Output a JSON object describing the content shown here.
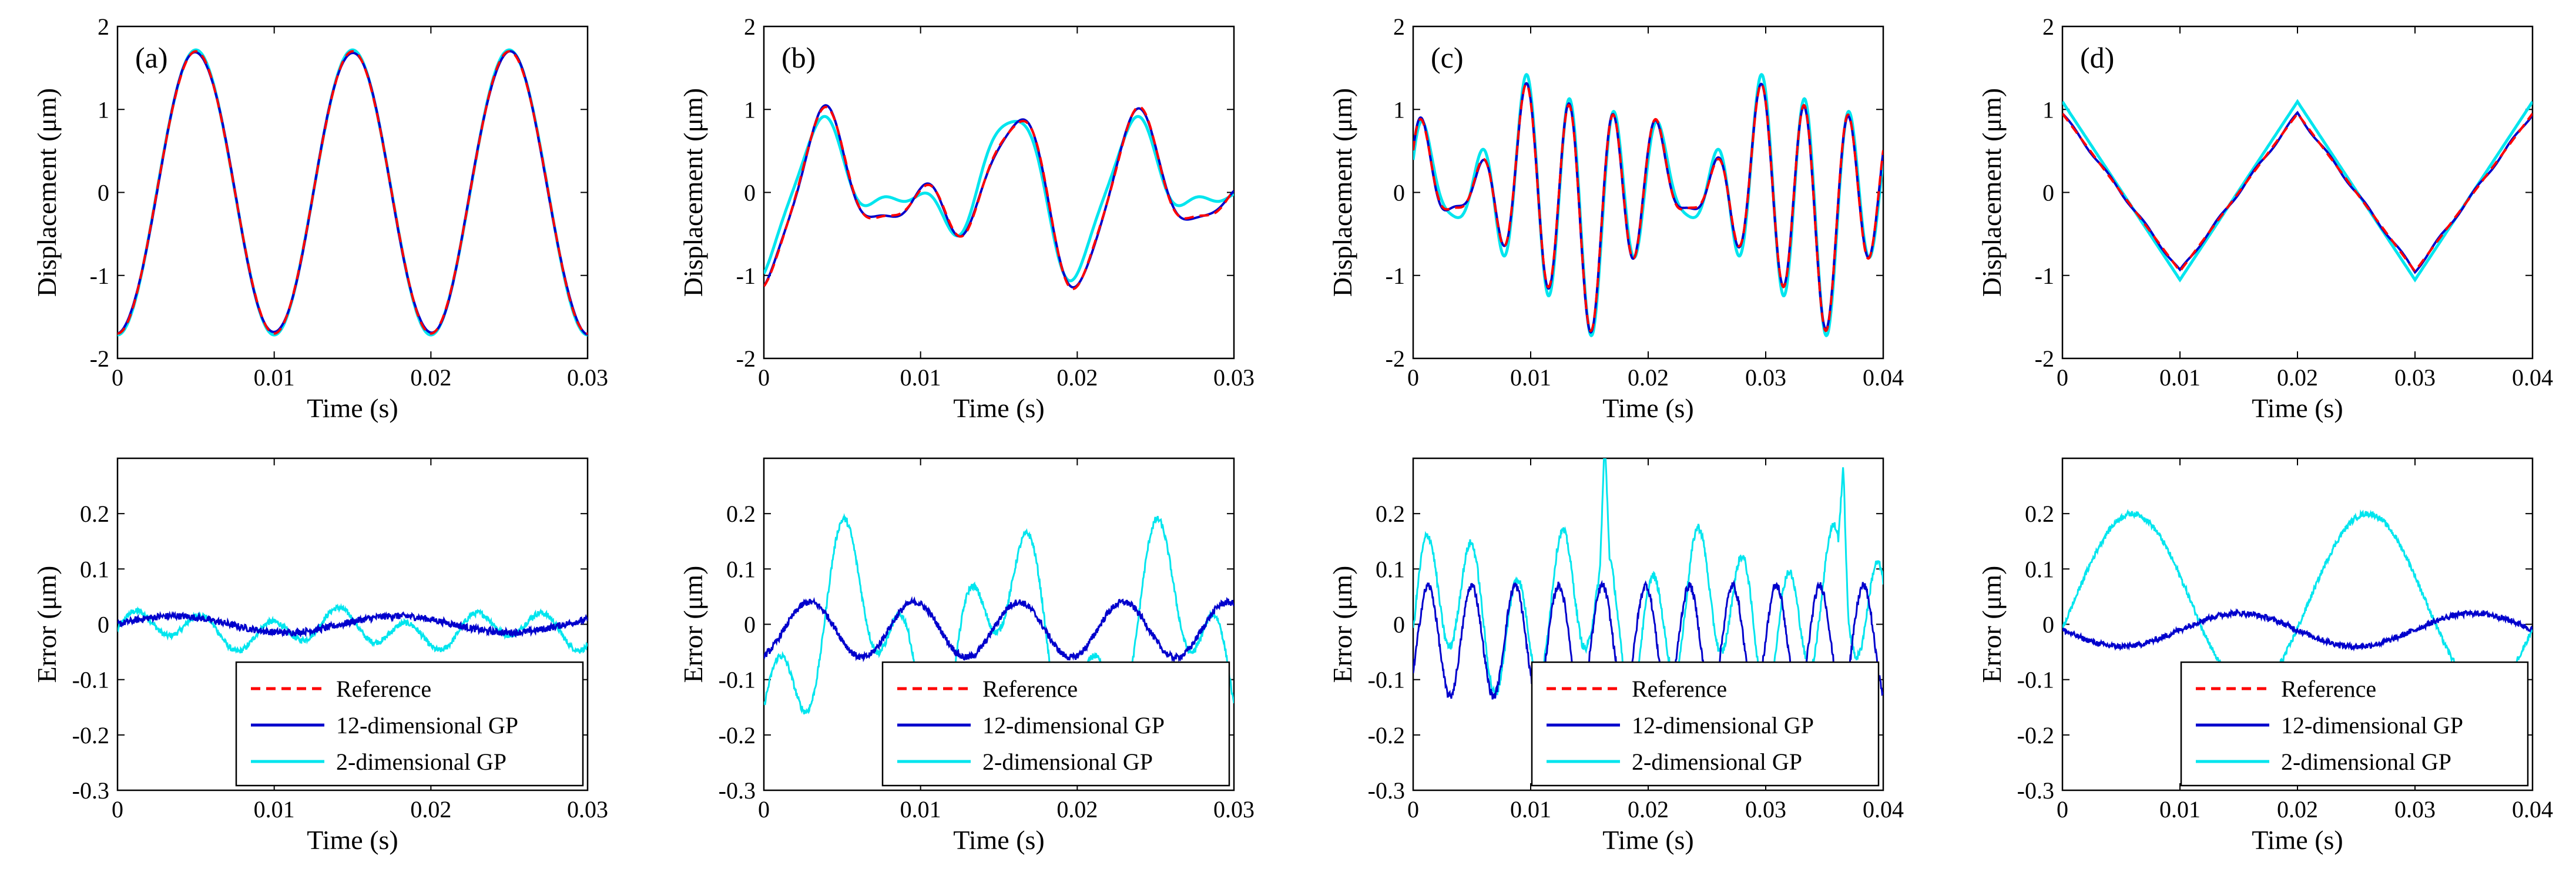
{
  "chart_data": [
    {
      "type": "line",
      "panel": "(a)",
      "row": "displacement",
      "xlabel": "Time (s)",
      "ylabel": "Displacement (μm)",
      "xlim": [
        0,
        0.03
      ],
      "ylim": [
        -2,
        2
      ],
      "xticks": [
        0,
        0.01,
        0.02,
        0.03
      ],
      "xtick_labels": [
        "0",
        "0.01",
        "0.02",
        "0.03"
      ],
      "yticks": [
        -2,
        -1,
        0,
        1,
        2
      ],
      "ytick_labels": [
        "-2",
        "-1",
        "0",
        "1",
        "2"
      ],
      "signal": "sine",
      "amplitude": 1.7,
      "period": 0.01,
      "series": [
        {
          "name": "Reference",
          "color": "#ff0000",
          "style": "dashed",
          "deviation": "none"
        },
        {
          "name": "12-dimensional GP",
          "color": "#0000cc",
          "style": "solid",
          "deviation": "small"
        },
        {
          "name": "2-dimensional GP",
          "color": "#00e5ee",
          "style": "solid",
          "deviation": "slight"
        }
      ]
    },
    {
      "type": "line",
      "panel": "(b)",
      "row": "displacement",
      "xlabel": "Time (s)",
      "ylabel": "Displacement (μm)",
      "xlim": [
        0,
        0.03
      ],
      "ylim": [
        -2,
        2
      ],
      "xticks": [
        0,
        0.01,
        0.02,
        0.03
      ],
      "xtick_labels": [
        "0",
        "0.01",
        "0.02",
        "0.03"
      ],
      "yticks": [
        -2,
        -1,
        0,
        1,
        2
      ],
      "ytick_labels": [
        "-2",
        "-1",
        "0",
        "1",
        "2"
      ],
      "signal": "two-tone",
      "series": [
        {
          "name": "Reference",
          "color": "#ff0000",
          "style": "dashed",
          "deviation": "none"
        },
        {
          "name": "12-dimensional GP",
          "color": "#0000cc",
          "style": "solid",
          "deviation": "small"
        },
        {
          "name": "2-dimensional GP",
          "color": "#00e5ee",
          "style": "solid",
          "deviation": "moderate"
        }
      ]
    },
    {
      "type": "line",
      "panel": "(c)",
      "row": "displacement",
      "xlabel": "Time (s)",
      "ylabel": "Displacement (μm)",
      "xlim": [
        0,
        0.04
      ],
      "ylim": [
        -2,
        2
      ],
      "xticks": [
        0,
        0.01,
        0.02,
        0.03,
        0.04
      ],
      "xtick_labels": [
        "0",
        "0.01",
        "0.02",
        "0.03",
        "0.04"
      ],
      "yticks": [
        -2,
        -1,
        0,
        1,
        2
      ],
      "ytick_labels": [
        "-2",
        "-1",
        "0",
        "1",
        "2"
      ],
      "signal": "multi-tone",
      "series": [
        {
          "name": "Reference",
          "color": "#ff0000",
          "style": "dashed",
          "deviation": "none"
        },
        {
          "name": "12-dimensional GP",
          "color": "#0000cc",
          "style": "solid",
          "deviation": "small"
        },
        {
          "name": "2-dimensional GP",
          "color": "#00e5ee",
          "style": "solid",
          "deviation": "moderate"
        }
      ]
    },
    {
      "type": "line",
      "panel": "(d)",
      "row": "displacement",
      "xlabel": "Time (s)",
      "ylabel": "Displacement (μm)",
      "xlim": [
        0,
        0.04
      ],
      "ylim": [
        -2,
        2
      ],
      "xticks": [
        0,
        0.01,
        0.02,
        0.03,
        0.04
      ],
      "xtick_labels": [
        "0",
        "0.01",
        "0.02",
        "0.03",
        "0.04"
      ],
      "yticks": [
        -2,
        -1,
        0,
        1,
        2
      ],
      "ytick_labels": [
        "-2",
        "-1",
        "0",
        "1",
        "2"
      ],
      "signal": "triangle",
      "amplitude": 0.95,
      "period": 0.02,
      "series": [
        {
          "name": "Reference",
          "color": "#ff0000",
          "style": "dashed",
          "deviation": "none"
        },
        {
          "name": "12-dimensional GP",
          "color": "#0000cc",
          "style": "solid",
          "deviation": "small"
        },
        {
          "name": "2-dimensional GP",
          "color": "#00e5ee",
          "style": "solid",
          "deviation": "overshoot"
        }
      ]
    },
    {
      "type": "line",
      "panel": "(a)",
      "row": "error",
      "xlabel": "Time (s)",
      "ylabel": "Error (μm)",
      "xlim": [
        0,
        0.03
      ],
      "ylim": [
        -0.3,
        0.3
      ],
      "xticks": [
        0,
        0.01,
        0.02,
        0.03
      ],
      "xtick_labels": [
        "0",
        "0.01",
        "0.02",
        "0.03"
      ],
      "yticks": [
        -0.3,
        -0.2,
        -0.1,
        0,
        0.1,
        0.2
      ],
      "ytick_labels": [
        "-0.3",
        "-0.2",
        "-0.1",
        "0",
        "0.1",
        "0.2"
      ],
      "legend": {
        "placement": "bottom-right",
        "entries": [
          "Reference",
          "12-dimensional GP",
          "2-dimensional GP"
        ]
      },
      "series": [
        {
          "name": "Reference",
          "color": "#ff0000",
          "style": "dashed",
          "value": 0
        },
        {
          "name": "12-dimensional GP",
          "color": "#0000cc",
          "style": "solid",
          "envelope": 0.02
        },
        {
          "name": "2-dimensional GP",
          "color": "#00e5ee",
          "style": "solid",
          "envelope": 0.04
        }
      ]
    },
    {
      "type": "line",
      "panel": "(b)",
      "row": "error",
      "xlabel": "Time (s)",
      "ylabel": "Error (μm)",
      "xlim": [
        0,
        0.03
      ],
      "ylim": [
        -0.3,
        0.3
      ],
      "xticks": [
        0,
        0.01,
        0.02,
        0.03
      ],
      "xtick_labels": [
        "0",
        "0.01",
        "0.02",
        "0.03"
      ],
      "yticks": [
        -0.3,
        -0.2,
        -0.1,
        0,
        0.1,
        0.2
      ],
      "ytick_labels": [
        "-0.3",
        "-0.2",
        "-0.1",
        "0",
        "0.1",
        "0.2"
      ],
      "legend": {
        "placement": "bottom-right",
        "entries": [
          "Reference",
          "12-dimensional GP",
          "2-dimensional GP"
        ]
      },
      "series": [
        {
          "name": "Reference",
          "color": "#ff0000",
          "style": "dashed",
          "value": 0
        },
        {
          "name": "12-dimensional GP",
          "color": "#0000cc",
          "style": "solid",
          "envelope": 0.07
        },
        {
          "name": "2-dimensional GP",
          "color": "#00e5ee",
          "style": "solid",
          "envelope": 0.25
        }
      ]
    },
    {
      "type": "line",
      "panel": "(c)",
      "row": "error",
      "xlabel": "Time (s)",
      "ylabel": "Error (μm)",
      "xlim": [
        0,
        0.04
      ],
      "ylim": [
        -0.3,
        0.3
      ],
      "xticks": [
        0,
        0.01,
        0.02,
        0.03,
        0.04
      ],
      "xtick_labels": [
        "0",
        "0.01",
        "0.02",
        "0.03",
        "0.04"
      ],
      "yticks": [
        -0.3,
        -0.2,
        -0.1,
        0,
        0.1,
        0.2
      ],
      "ytick_labels": [
        "-0.3",
        "-0.2",
        "-0.1",
        "0",
        "0.1",
        "0.2"
      ],
      "legend": {
        "placement": "bottom-right",
        "entries": [
          "Reference",
          "12-dimensional GP",
          "2-dimensional GP"
        ]
      },
      "series": [
        {
          "name": "Reference",
          "color": "#ff0000",
          "style": "dashed",
          "value": 0
        },
        {
          "name": "12-dimensional GP",
          "color": "#0000cc",
          "style": "solid",
          "envelope": 0.18
        },
        {
          "name": "2-dimensional GP",
          "color": "#00e5ee",
          "style": "solid",
          "envelope": 0.27
        }
      ]
    },
    {
      "type": "line",
      "panel": "(d)",
      "row": "error",
      "xlabel": "Time (s)",
      "ylabel": "Error (μm)",
      "xlim": [
        0,
        0.04
      ],
      "ylim": [
        -0.3,
        0.3
      ],
      "xticks": [
        0,
        0.01,
        0.02,
        0.03,
        0.04
      ],
      "xtick_labels": [
        "0",
        "0.01",
        "0.02",
        "0.03",
        "0.04"
      ],
      "yticks": [
        -0.3,
        -0.2,
        -0.1,
        0,
        0.1,
        0.2
      ],
      "ytick_labels": [
        "-0.3",
        "-0.2",
        "-0.1",
        "0",
        "0.1",
        "0.2"
      ],
      "legend": {
        "placement": "bottom-right",
        "entries": [
          "Reference",
          "12-dimensional GP",
          "2-dimensional GP"
        ]
      },
      "series": [
        {
          "name": "Reference",
          "color": "#ff0000",
          "style": "dashed",
          "value": 0
        },
        {
          "name": "12-dimensional GP",
          "color": "#0000cc",
          "style": "solid",
          "envelope": 0.03
        },
        {
          "name": "2-dimensional GP",
          "color": "#00e5ee",
          "style": "solid",
          "envelope": 0.21
        }
      ]
    }
  ]
}
